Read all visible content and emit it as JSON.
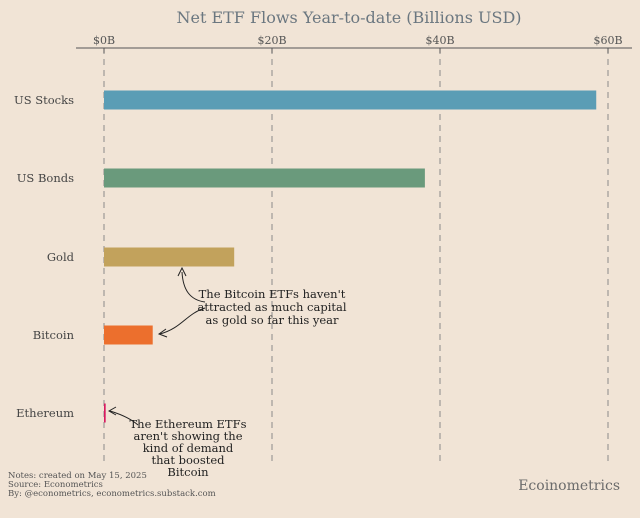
{
  "chart_data": {
    "type": "bar",
    "orientation": "horizontal",
    "title": "Net ETF Flows Year-to-date (Billions USD)",
    "xlim": [
      0,
      60
    ],
    "ticks": [
      0,
      20,
      40,
      60
    ],
    "tick_labels": [
      "$0B",
      "$20B",
      "$40B",
      "$60B"
    ],
    "categories": [
      "US Stocks",
      "US Bonds",
      "Gold",
      "Bitcoin",
      "Ethereum"
    ],
    "values": [
      58.6,
      38.2,
      15.5,
      5.8,
      0.2
    ],
    "colors": [
      "#5b9db5",
      "#6a9a7c",
      "#c2a25c",
      "#ec6f2d",
      "#d81b60"
    ],
    "grid": true,
    "annotations": [
      {
        "target": "Gold",
        "lines": [
          "The Bitcoin ETFs haven't",
          "attracted as much capital",
          "as gold so far this year"
        ]
      },
      {
        "target": "Ethereum",
        "lines": [
          "The Ethereum ETFs",
          "aren't showing the",
          "kind of demand",
          "that boosted",
          "Bitcoin"
        ]
      }
    ]
  },
  "footer": {
    "notes": "Notes: created on May 15, 2025",
    "source": "Source: Econometrics",
    "by": "By: @econometrics, econometrics.substack.com"
  },
  "brand": "Ecoinometrics"
}
